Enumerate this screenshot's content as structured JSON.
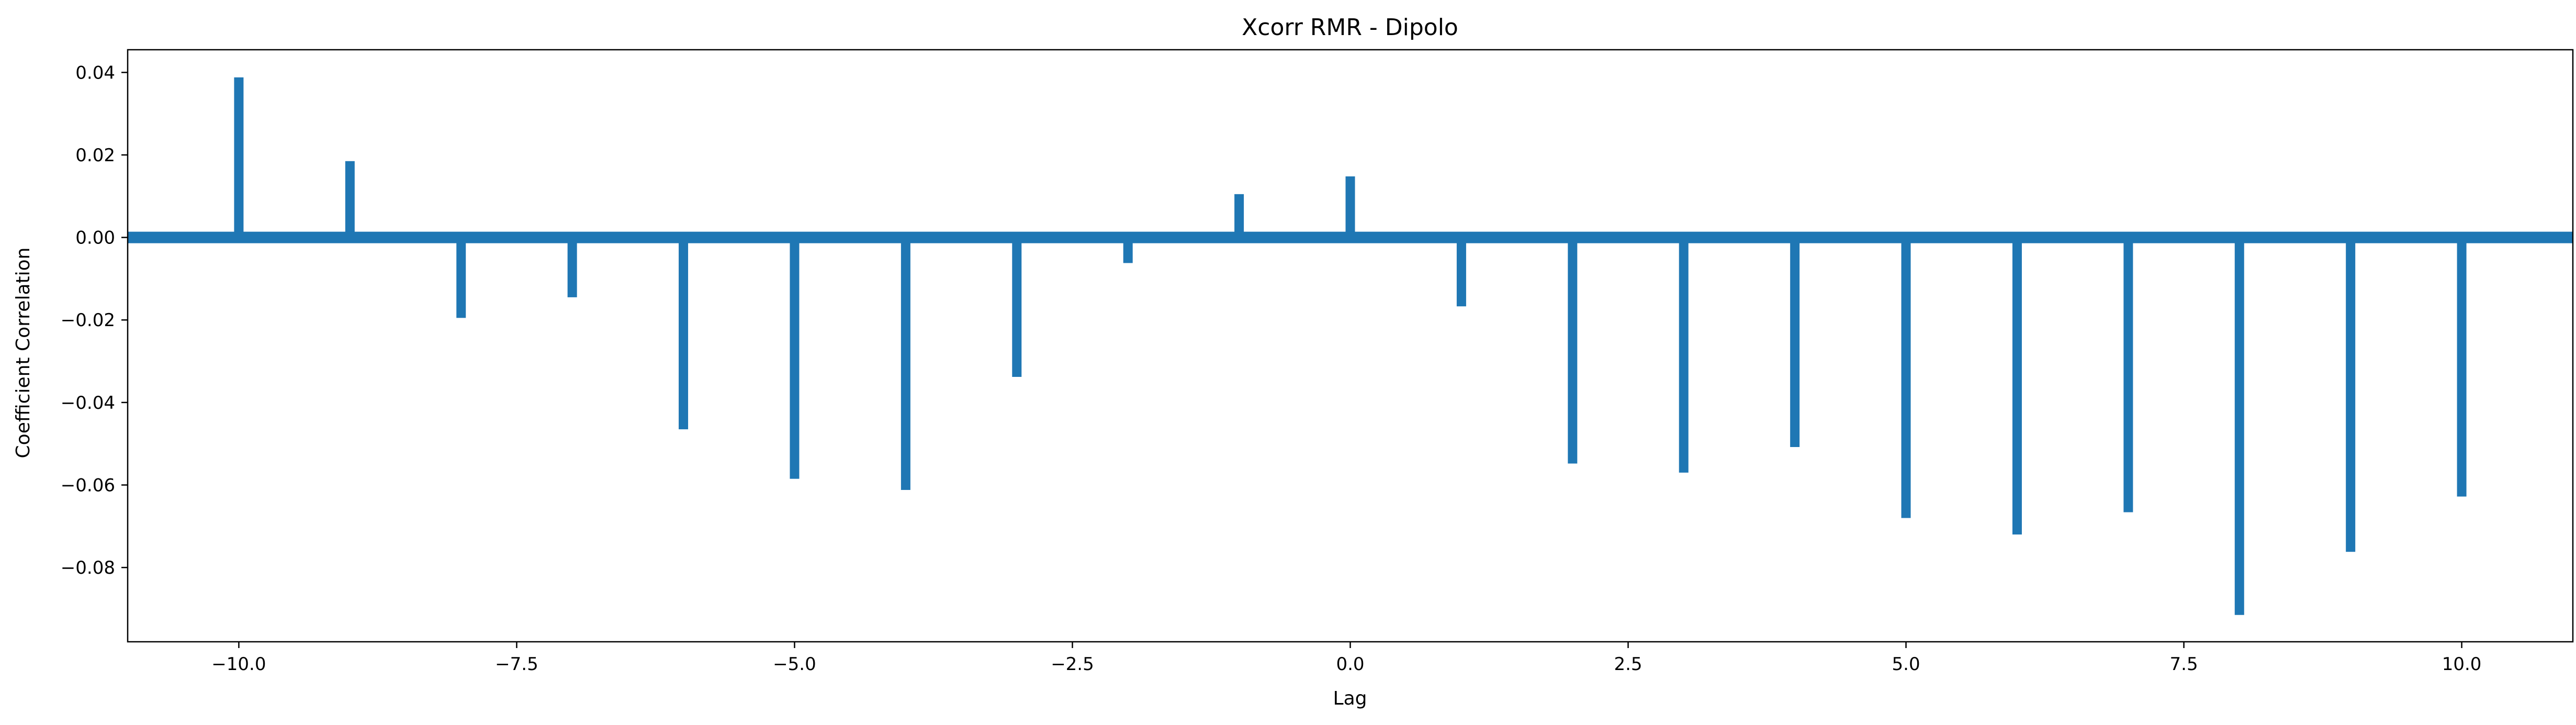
{
  "chart_data": {
    "type": "bar",
    "title": "Xcorr RMR - Dipolo",
    "xlabel": "Lag",
    "ylabel": "Coefficient Correlation",
    "xlim": [
      -11,
      11
    ],
    "ylim": [
      -0.098,
      0.0455
    ],
    "grid": false,
    "color": "#1f77b4",
    "x": [
      -10,
      -9,
      -8,
      -7,
      -6,
      -5,
      -4,
      -3,
      -2,
      -1,
      0,
      1,
      2,
      3,
      4,
      5,
      6,
      7,
      8,
      9,
      10
    ],
    "values": [
      0.0388,
      0.0185,
      -0.0195,
      -0.0145,
      -0.0465,
      -0.0585,
      -0.0612,
      -0.0338,
      -0.0062,
      0.0105,
      0.0148,
      -0.0167,
      -0.0548,
      -0.057,
      -0.0508,
      -0.068,
      -0.072,
      -0.0666,
      -0.0915,
      -0.0762,
      -0.0628
    ],
    "zero_line": true,
    "x_ticks": [
      -10.0,
      -7.5,
      -5.0,
      -2.5,
      0.0,
      2.5,
      5.0,
      7.5,
      10.0
    ],
    "x_tick_labels": [
      "−10.0",
      "−7.5",
      "−5.0",
      "−2.5",
      "0.0",
      "2.5",
      "5.0",
      "7.5",
      "10.0"
    ],
    "y_ticks": [
      0.04,
      0.02,
      0.0,
      -0.02,
      -0.04,
      -0.06,
      -0.08
    ],
    "y_tick_labels": [
      "0.04",
      "0.02",
      "0.00",
      "−0.02",
      "−0.04",
      "−0.06",
      "−0.08"
    ]
  }
}
